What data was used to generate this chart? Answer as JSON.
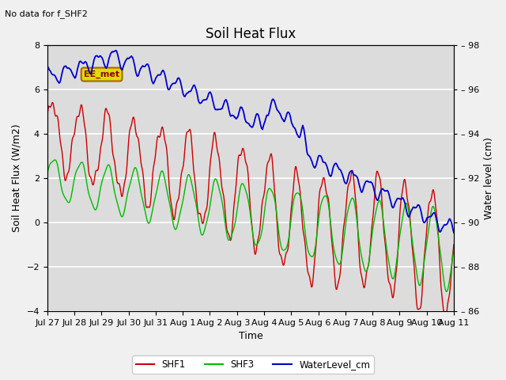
{
  "title": "Soil Heat Flux",
  "subtitle": "No data for f_SHF2",
  "xlabel": "Time",
  "ylabel_left": "Soil Heat Flux (W/m2)",
  "ylabel_right": "Water level (cm)",
  "ylim_left": [
    -4,
    8
  ],
  "ylim_right": [
    86,
    98
  ],
  "yticks_left": [
    -4,
    -2,
    0,
    2,
    4,
    6,
    8
  ],
  "yticks_right": [
    86,
    88,
    90,
    92,
    94,
    96,
    98
  ],
  "xtick_labels": [
    "Jul 27",
    "Jul 28",
    "Jul 29",
    "Jul 30",
    "Jul 31",
    "Aug 1",
    "Aug 2",
    "Aug 3",
    "Aug 4",
    "Aug 5",
    "Aug 6",
    "Aug 7",
    "Aug 8",
    "Aug 9",
    "Aug 10",
    "Aug 11"
  ],
  "annotation_text": "EE_met",
  "legend_labels": [
    "SHF1",
    "SHF3",
    "WaterLevel_cm"
  ],
  "legend_colors": [
    "#cc0000",
    "#00bb00",
    "#0000cc"
  ],
  "fig_facecolor": "#f0f0f0",
  "plot_bg_color": "#dcdcdc",
  "grid_color": "white",
  "title_fontsize": 12,
  "label_fontsize": 9,
  "tick_fontsize": 8
}
